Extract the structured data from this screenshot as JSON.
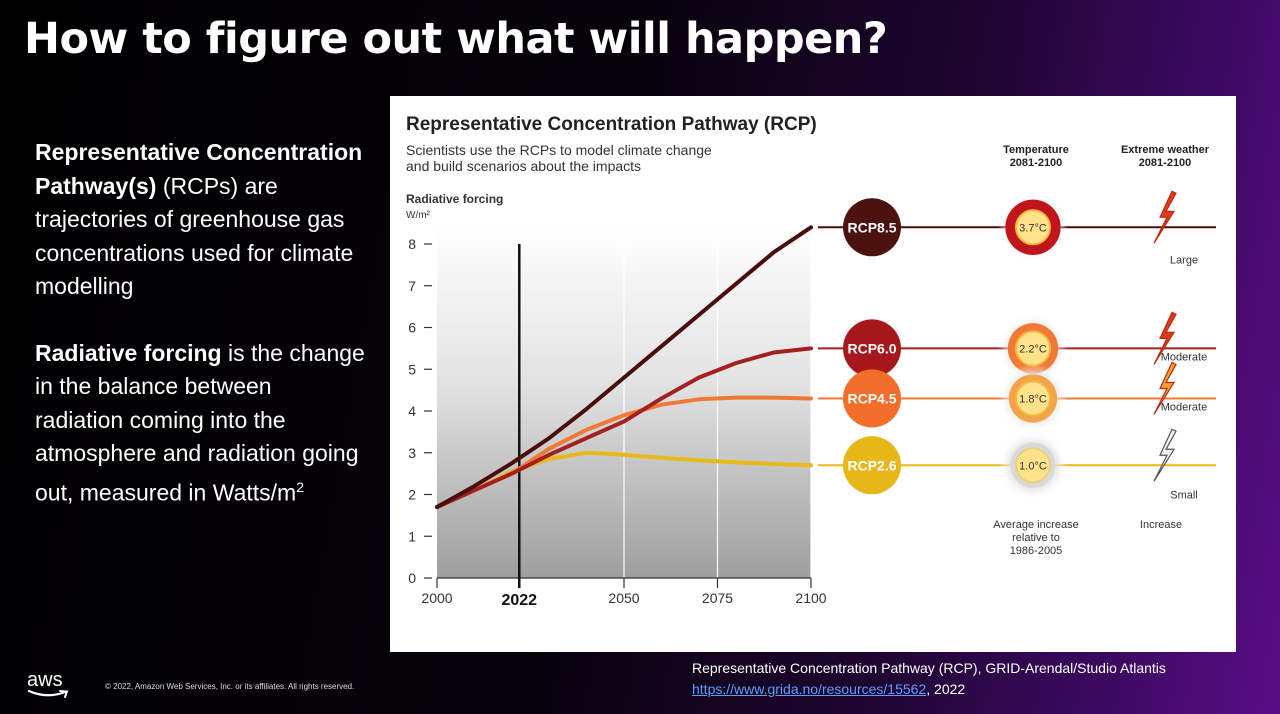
{
  "slide": {
    "title": "How to figure out what will happen?",
    "p1_bold": "Representative Concentration Pathway(s)",
    "p1_rest": " (RCPs) are trajectories of greenhouse gas concentrations used for climate modelling",
    "p2_bold": "Radiative forcing",
    "p2_rest": " is the change in the balance between radiation coming into the atmosphere and radiation going out, measured in Watts/m",
    "p2_sup": "2",
    "caption_line1": "Representative Concentration Pathway (RCP), GRID-Arendal/Studio Atlantis",
    "caption_link": "https://www.grida.no/resources/15562",
    "caption_year": ", 2022",
    "logo_text": "aws",
    "copyright": "© 2022, Amazon Web Services, Inc. or its affiliates. All rights reserved."
  },
  "chart_data": {
    "type": "line",
    "title": "Representative Concentration Pathway (RCP)",
    "subtitle_lines": [
      "Scientists use the RCPs to model climate change",
      "and build scenarios about the impacts"
    ],
    "ylabel": "Radiative forcing",
    "yunit": "W/m²",
    "ylim": [
      0,
      8
    ],
    "yticks": [
      "0",
      "1",
      "2",
      "3",
      "4",
      "5",
      "6",
      "7",
      "8"
    ],
    "xlim": [
      2000,
      2100
    ],
    "xticks": [
      {
        "value": 2000,
        "label": "2000",
        "bold": false
      },
      {
        "value": 2022,
        "label": "2022",
        "bold": true
      },
      {
        "value": 2050,
        "label": "2050",
        "bold": false
      },
      {
        "value": 2075,
        "label": "2075",
        "bold": false
      },
      {
        "value": 2100,
        "label": "2100",
        "bold": false
      }
    ],
    "marker_year": 2022,
    "series": [
      {
        "name": "RCP8.5",
        "color": "#4a0d0d",
        "circle": "#4b120f",
        "temperature": "3.7°C",
        "temp_level": 0.95,
        "weather": "Large",
        "x": [
          2000,
          2010,
          2020,
          2030,
          2040,
          2050,
          2060,
          2070,
          2080,
          2090,
          2100
        ],
        "y": [
          1.7,
          2.2,
          2.75,
          3.35,
          4.05,
          4.8,
          5.55,
          6.3,
          7.05,
          7.8,
          8.4
        ]
      },
      {
        "name": "RCP6.0",
        "color": "#a3201e",
        "circle": "#a6181c",
        "temperature": "2.2°C",
        "temp_level": 0.6,
        "weather": "Moderate",
        "x": [
          2000,
          2010,
          2020,
          2030,
          2040,
          2050,
          2060,
          2070,
          2080,
          2090,
          2100
        ],
        "y": [
          1.7,
          2.1,
          2.5,
          2.95,
          3.35,
          3.75,
          4.3,
          4.8,
          5.15,
          5.4,
          5.5
        ]
      },
      {
        "name": "RCP4.5",
        "color": "#f07a35",
        "circle": "#f26e2a",
        "temperature": "1.8°C",
        "temp_level": 0.45,
        "weather": "Moderate",
        "x": [
          2000,
          2010,
          2020,
          2030,
          2040,
          2050,
          2060,
          2070,
          2080,
          2090,
          2100
        ],
        "y": [
          1.7,
          2.1,
          2.5,
          3.1,
          3.55,
          3.9,
          4.15,
          4.28,
          4.32,
          4.32,
          4.3
        ]
      },
      {
        "name": "RCP2.6",
        "color": "#e9b91a",
        "circle": "#e7b617",
        "temperature": "1.0°C",
        "temp_level": 0.2,
        "weather": "Small",
        "x": [
          2000,
          2010,
          2020,
          2030,
          2040,
          2050,
          2060,
          2070,
          2080,
          2090,
          2100
        ],
        "y": [
          1.7,
          2.1,
          2.55,
          2.85,
          3.0,
          2.95,
          2.88,
          2.82,
          2.77,
          2.73,
          2.7
        ]
      }
    ],
    "temperature_header": [
      "Temperature",
      "2081-2100"
    ],
    "weather_header": [
      "Extreme weather",
      "2081-2100"
    ],
    "temperature_footer": [
      "Average increase",
      "relative to",
      "1986-2005"
    ],
    "weather_footer": "Increase"
  }
}
